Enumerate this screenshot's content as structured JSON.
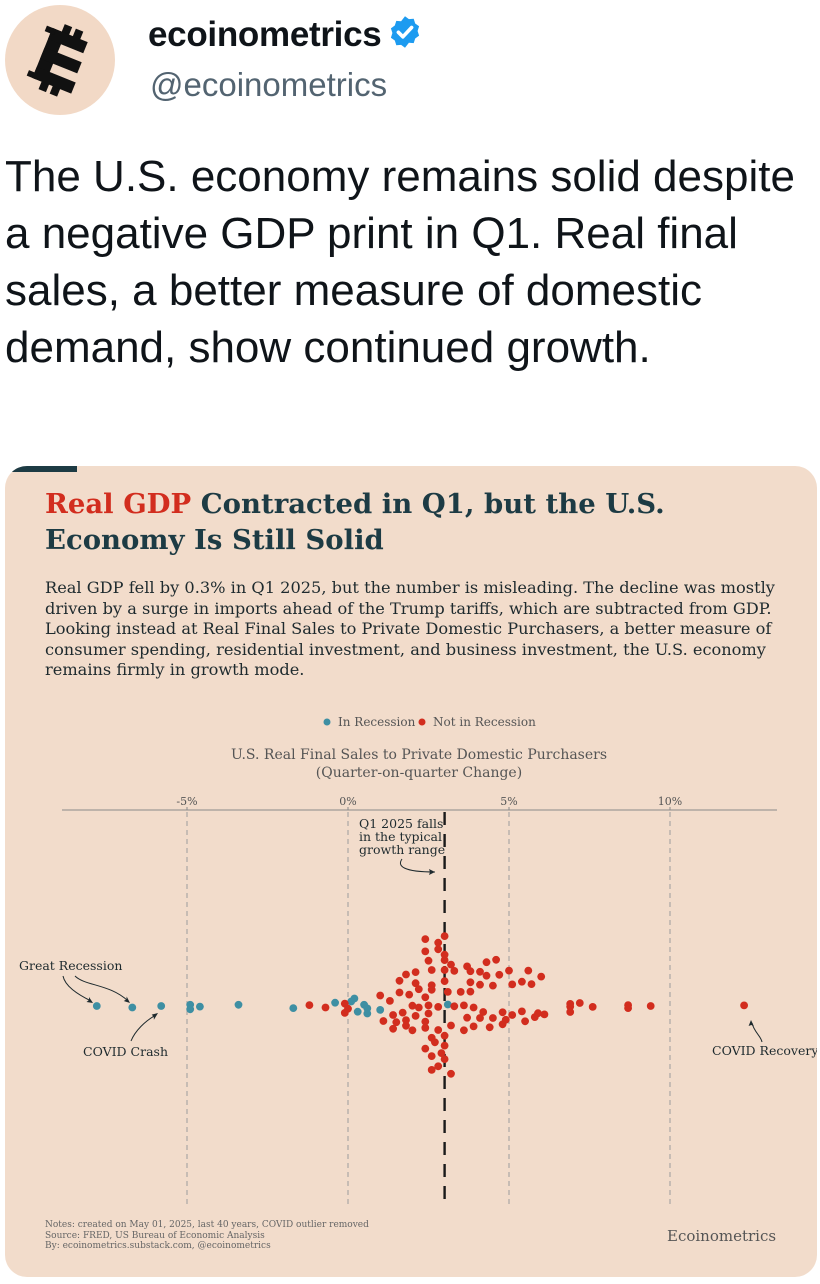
{
  "author": {
    "display_name": "ecoinometrics",
    "handle": "@ecoinometrics",
    "verified_icon": "verified-badge-icon",
    "avatar_icon": "bitcoin-logo-icon"
  },
  "tweet": {
    "text": "The U.S. economy remains solid despite a negative GDP print in Q1. Real final sales, a better measure of domestic demand, show continued growth."
  },
  "card": {
    "title_highlight": "Real GDP",
    "title_rest": " Contracted in Q1, but the U.S. Economy Is Still Solid",
    "subtitle": "Real GDP fell by 0.3% in Q1 2025, but the number is misleading. The decline was mostly driven by a surge in imports ahead of the Trump tariffs, which are subtracted from GDP. Looking instead at Real Final Sales to Private Domestic Purchasers, a better measure of consumer spending, residential investment, and business investment, the U.S. economy remains firmly in growth mode.",
    "notes": [
      "Notes: created on May 01, 2025, last 40 years, COVID outlier removed",
      "Source: FRED, US Bureau of Economic Analysis",
      "By: ecoinometrics.substack.com, @ecoinometrics"
    ],
    "brand": "Ecoinometrics"
  },
  "colors": {
    "recession": "#3e8fa3",
    "not_recession": "#d22d1e",
    "title_dark": "#1d3b44",
    "background": "#f2dccb"
  },
  "chart_data": {
    "type": "scatter",
    "subtype": "beeswarm",
    "title": "U.S. Real Final Sales to Private Domestic Purchasers",
    "subtitle": "(Quarter-on-quarter Change)",
    "x_axis": {
      "ticks": [
        -5,
        0,
        5,
        10
      ],
      "tick_labels": [
        "-5%",
        "0%",
        "5%",
        "10%"
      ],
      "range": [
        -9,
        13.3
      ]
    },
    "legend": [
      {
        "label": "In Recession",
        "color": "#3e8fa3"
      },
      {
        "label": "Not in Recession",
        "color": "#d22d1e"
      }
    ],
    "reference_line": {
      "x": 3.0
    },
    "annotations": [
      {
        "label": "Q1 2025 falls",
        "x": 3.0
      },
      {
        "label": "in the typical",
        "x": 3.0
      },
      {
        "label": "growth range",
        "x": 3.0
      },
      {
        "label": "Great Recession",
        "x": -6.8
      },
      {
        "label": "COVID Crash",
        "x": -5.4
      },
      {
        "label": "COVID Recovery",
        "x": 12.1
      }
    ],
    "series": [
      {
        "name": "In Recession",
        "color": "#3e8fa3",
        "points": [
          [
            -7.8,
            0.0
          ],
          [
            -6.7,
            -0.5
          ],
          [
            -5.8,
            0.0
          ],
          [
            -4.9,
            0.4
          ],
          [
            -4.9,
            -1.1
          ],
          [
            -4.6,
            -0.2
          ],
          [
            -3.4,
            0.4
          ],
          [
            -1.7,
            -0.7
          ],
          [
            -0.4,
            1.1
          ],
          [
            0.1,
            1.5
          ],
          [
            0.5,
            0.4
          ],
          [
            0.6,
            -0.8
          ],
          [
            0.3,
            -1.9
          ],
          [
            0.6,
            -2.5
          ],
          [
            0.2,
            2.5
          ],
          [
            1.0,
            -1.3
          ],
          [
            3.1,
            0.5
          ]
        ]
      },
      {
        "name": "Not in Recession",
        "color": "#d22d1e",
        "points": [
          [
            -1.2,
            0.3
          ],
          [
            -0.7,
            -0.5
          ],
          [
            -0.1,
            0.8
          ],
          [
            0.0,
            -0.9
          ],
          [
            -0.1,
            -2.3
          ],
          [
            2.2,
            -0.5
          ],
          [
            2.5,
            0.2
          ],
          [
            2.8,
            -0.3
          ],
          [
            3.3,
            -0.1
          ],
          [
            3.6,
            0.2
          ],
          [
            3.9,
            -0.5
          ],
          [
            2.0,
            0.1
          ],
          [
            1.0,
            3.5
          ],
          [
            1.3,
            1.7
          ],
          [
            1.4,
            -3.0
          ],
          [
            1.9,
            3.8
          ],
          [
            2.4,
            2.9
          ],
          [
            1.7,
            -2.2
          ],
          [
            2.1,
            -3.3
          ],
          [
            2.5,
            -2.5
          ],
          [
            1.1,
            -5.0
          ],
          [
            1.5,
            -5.4
          ],
          [
            1.8,
            -4.7
          ],
          [
            2.4,
            -5.2
          ],
          [
            1.4,
            -7.6
          ],
          [
            1.8,
            -6.6
          ],
          [
            2.0,
            -8.1
          ],
          [
            2.4,
            -7.3
          ],
          [
            2.8,
            -8.0
          ],
          [
            3.6,
            -8.1
          ],
          [
            3.9,
            -6.8
          ],
          [
            4.4,
            -7.1
          ],
          [
            4.8,
            -6.1
          ],
          [
            3.2,
            -6.5
          ],
          [
            2.6,
            -10.6
          ],
          [
            3.0,
            -9.9
          ],
          [
            2.7,
            -12.1
          ],
          [
            3.0,
            -13.2
          ],
          [
            2.4,
            -14.2
          ],
          [
            2.9,
            -15.7
          ],
          [
            2.6,
            -16.7
          ],
          [
            3.0,
            -17.7
          ],
          [
            2.8,
            -20.1
          ],
          [
            2.6,
            -21.3
          ],
          [
            3.2,
            -22.6
          ],
          [
            3.7,
            -3.9
          ],
          [
            4.1,
            -4.0
          ],
          [
            4.5,
            -4.0
          ],
          [
            4.9,
            -4.6
          ],
          [
            5.5,
            -5.1
          ],
          [
            4.2,
            -2.0
          ],
          [
            4.8,
            -2.1
          ],
          [
            5.1,
            -3.0
          ],
          [
            5.4,
            -1.8
          ],
          [
            5.9,
            -2.4
          ],
          [
            5.8,
            -3.7
          ],
          [
            1.6,
            8.4
          ],
          [
            2.1,
            7.6
          ],
          [
            2.6,
            6.9
          ],
          [
            3.0,
            8.3
          ],
          [
            1.6,
            4.5
          ],
          [
            2.2,
            5.6
          ],
          [
            2.6,
            5.4
          ],
          [
            3.1,
            4.7
          ],
          [
            3.5,
            4.7
          ],
          [
            3.8,
            4.8
          ],
          [
            3.8,
            7.9
          ],
          [
            4.1,
            7.1
          ],
          [
            4.5,
            6.8
          ],
          [
            5.1,
            7.2
          ],
          [
            5.4,
            8.1
          ],
          [
            5.7,
            7.3
          ],
          [
            1.8,
            10.5
          ],
          [
            2.1,
            11.3
          ],
          [
            2.6,
            12.0
          ],
          [
            3.0,
            12.0
          ],
          [
            3.3,
            11.7
          ],
          [
            3.8,
            11.6
          ],
          [
            4.1,
            11.4
          ],
          [
            4.3,
            10.1
          ],
          [
            4.7,
            10.4
          ],
          [
            5.0,
            11.8
          ],
          [
            5.6,
            11.8
          ],
          [
            6.0,
            9.8
          ],
          [
            2.5,
            15.1
          ],
          [
            3.0,
            15.3
          ],
          [
            3.2,
            13.8
          ],
          [
            3.7,
            13.2
          ],
          [
            4.3,
            14.6
          ],
          [
            4.6,
            15.4
          ],
          [
            2.4,
            18.2
          ],
          [
            2.8,
            18.9
          ],
          [
            3.0,
            17.1
          ],
          [
            2.8,
            21.1
          ],
          [
            3.0,
            23.3
          ],
          [
            2.4,
            22.3
          ],
          [
            6.1,
            -2.8
          ],
          [
            6.9,
            -0.2
          ],
          [
            6.9,
            0.7
          ],
          [
            6.9,
            -2.0
          ],
          [
            7.2,
            1.0
          ],
          [
            7.6,
            -0.3
          ],
          [
            8.7,
            0.3
          ],
          [
            8.7,
            -0.7
          ],
          [
            9.4,
            0.0
          ],
          [
            12.3,
            0.2
          ]
        ]
      }
    ]
  }
}
